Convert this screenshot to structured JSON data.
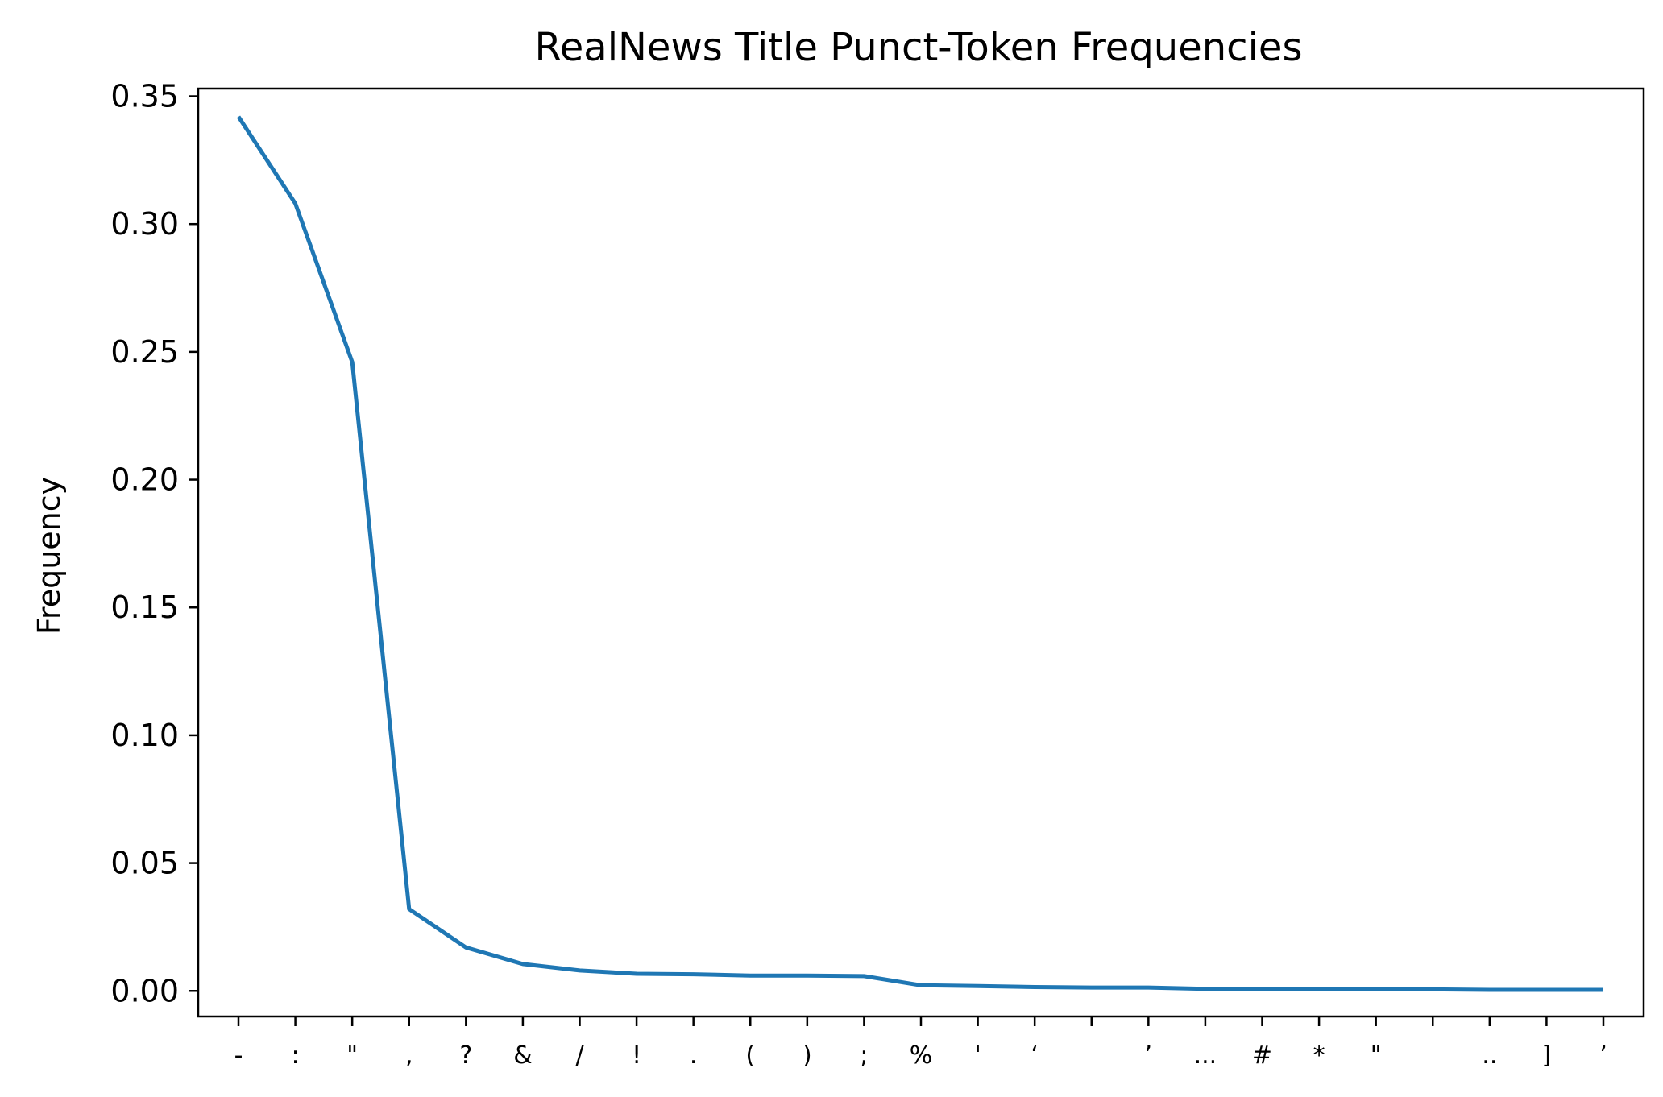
{
  "chart_data": {
    "type": "line",
    "title": "RealNews Title Punct-Token Frequencies",
    "xlabel": "",
    "ylabel": "Frequency",
    "categories": [
      "-",
      ":",
      "\"",
      ",",
      "?",
      "&",
      "/",
      "!",
      ".",
      "(",
      ")",
      ";",
      "%",
      "'",
      "‘",
      "",
      "’",
      "...",
      "#",
      "*",
      "\"",
      "",
      "..",
      "]",
      "’"
    ],
    "series": [
      {
        "values": [
          0.342,
          0.308,
          0.246,
          0.032,
          0.017,
          0.0105,
          0.008,
          0.0067,
          0.0065,
          0.006,
          0.006,
          0.0058,
          0.0022,
          0.0019,
          0.0015,
          0.0013,
          0.0013,
          0.0008,
          0.0008,
          0.0007,
          0.0006,
          0.0006,
          0.0004,
          0.0004,
          0.0004
        ],
        "color": "#1f77b4"
      }
    ],
    "ylim": [
      -0.01,
      0.353
    ],
    "yticks": [
      0.0,
      0.05,
      0.1,
      0.15,
      0.2,
      0.25,
      0.3,
      0.35
    ],
    "ytick_labels": [
      "0.00",
      "0.05",
      "0.10",
      "0.15",
      "0.20",
      "0.25",
      "0.30",
      "0.35"
    ],
    "grid": false,
    "legend": "none"
  }
}
